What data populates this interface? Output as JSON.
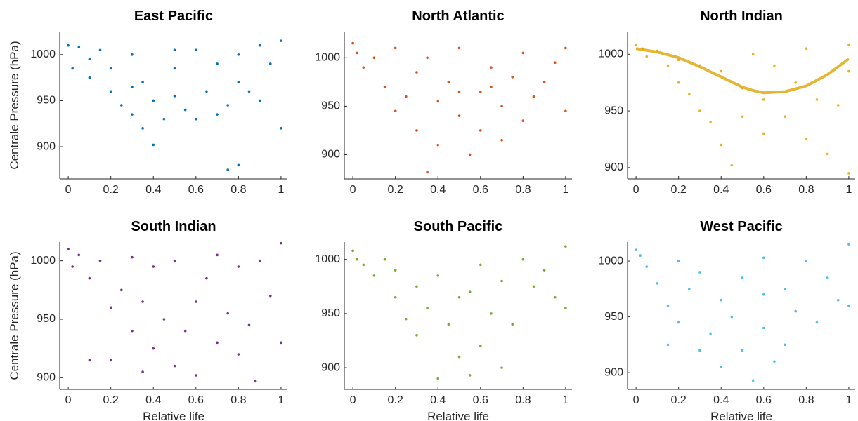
{
  "chart_data": [
    {
      "type": "scatter",
      "title": "East Pacific",
      "ylabel": "Centrale Pressure (hPa)",
      "color": "#0072BD",
      "xlim": [
        -0.04,
        1.03
      ],
      "xticks": [
        0,
        0.2,
        0.4,
        0.6,
        0.8,
        1
      ],
      "ylim": [
        865,
        1025
      ],
      "yticks": [
        900,
        950,
        1000
      ],
      "x": [
        0,
        0.02,
        0.05,
        0.1,
        0.1,
        0.15,
        0.2,
        0.2,
        0.25,
        0.3,
        0.3,
        0.35,
        0.35,
        0.4,
        0.4,
        0.45,
        0.5,
        0.5,
        0.55,
        0.6,
        0.6,
        0.65,
        0.7,
        0.7,
        0.75,
        0.8,
        0.8,
        0.85,
        0.9,
        0.9,
        0.95,
        1,
        1,
        0.3,
        0.75,
        0.8,
        0.5
      ],
      "values": [
        1010,
        985,
        1008,
        995,
        975,
        1005,
        985,
        960,
        945,
        1000,
        935,
        970,
        920,
        950,
        902,
        930,
        985,
        955,
        940,
        1005,
        930,
        960,
        990,
        935,
        875,
        1000,
        880,
        960,
        1010,
        950,
        990,
        1015,
        920,
        965,
        945,
        970,
        1005
      ]
    },
    {
      "type": "scatter",
      "title": "North Atlantic",
      "color": "#D95319",
      "xlim": [
        -0.04,
        1.03
      ],
      "xticks": [
        0,
        0.2,
        0.4,
        0.6,
        0.8,
        1
      ],
      "ylim": [
        875,
        1027
      ],
      "yticks": [
        900,
        950,
        1000
      ],
      "x": [
        0,
        0.02,
        0.05,
        0.1,
        0.15,
        0.2,
        0.2,
        0.25,
        0.3,
        0.3,
        0.35,
        0.35,
        0.4,
        0.4,
        0.45,
        0.5,
        0.5,
        0.55,
        0.6,
        0.6,
        0.65,
        0.7,
        0.7,
        0.75,
        0.8,
        0.8,
        0.85,
        0.9,
        0.95,
        1,
        1,
        0.5,
        0.65
      ],
      "values": [
        1015,
        1005,
        990,
        1000,
        970,
        1010,
        945,
        960,
        985,
        925,
        1000,
        882,
        955,
        910,
        975,
        1010,
        940,
        900,
        965,
        925,
        990,
        950,
        915,
        980,
        1005,
        935,
        960,
        975,
        995,
        1010,
        945,
        965,
        970
      ]
    },
    {
      "type": "scatter",
      "title": "North Indian",
      "color": "#EDB120",
      "xlim": [
        -0.04,
        1.03
      ],
      "xticks": [
        0,
        0.2,
        0.4,
        0.6,
        0.8,
        1
      ],
      "ylim": [
        890,
        1020
      ],
      "yticks": [
        900,
        950,
        1000
      ],
      "x": [
        0,
        0.03,
        0.05,
        0.1,
        0.15,
        0.2,
        0.2,
        0.25,
        0.3,
        0.3,
        0.35,
        0.4,
        0.4,
        0.45,
        0.5,
        0.5,
        0.55,
        0.6,
        0.6,
        0.65,
        0.7,
        0.75,
        0.8,
        0.8,
        0.85,
        0.9,
        0.95,
        1,
        1,
        1
      ],
      "values": [
        1008,
        1005,
        998,
        1003,
        990,
        995,
        975,
        965,
        990,
        950,
        940,
        985,
        920,
        902,
        970,
        945,
        1000,
        960,
        930,
        990,
        945,
        975,
        1005,
        925,
        960,
        912,
        955,
        1008,
        985,
        895
      ],
      "trend": {
        "color": "#E0A810",
        "x": [
          0,
          0.1,
          0.2,
          0.3,
          0.4,
          0.5,
          0.55,
          0.6,
          0.7,
          0.8,
          0.9,
          1
        ],
        "values": [
          1005,
          1002,
          997,
          989,
          980,
          971,
          968,
          966,
          967,
          972,
          982,
          996
        ]
      }
    },
    {
      "type": "scatter",
      "title": "South Indian",
      "xlabel": "Relative life",
      "ylabel": "Centrale Pressure (hPa)",
      "color": "#7E2F8E",
      "xlim": [
        -0.04,
        1.03
      ],
      "xticks": [
        0,
        0.2,
        0.4,
        0.6,
        0.8,
        1
      ],
      "ylim": [
        890,
        1016
      ],
      "yticks": [
        900,
        950,
        1000
      ],
      "x": [
        0,
        0.02,
        0.05,
        0.1,
        0.1,
        0.15,
        0.2,
        0.2,
        0.25,
        0.3,
        0.3,
        0.35,
        0.35,
        0.4,
        0.4,
        0.45,
        0.5,
        0.5,
        0.55,
        0.6,
        0.6,
        0.65,
        0.7,
        0.7,
        0.75,
        0.8,
        0.8,
        0.85,
        0.9,
        0.95,
        1,
        1,
        0.88
      ],
      "values": [
        1010,
        995,
        1005,
        985,
        915,
        1000,
        960,
        915,
        975,
        940,
        1003,
        905,
        965,
        925,
        995,
        950,
        1000,
        910,
        940,
        965,
        902,
        985,
        930,
        1005,
        955,
        920,
        995,
        945,
        1000,
        970,
        1015,
        930,
        897
      ]
    },
    {
      "type": "scatter",
      "title": "South Pacific",
      "xlabel": "Relative life",
      "color": "#77AC30",
      "xlim": [
        -0.04,
        1.03
      ],
      "xticks": [
        0,
        0.2,
        0.4,
        0.6,
        0.8,
        1
      ],
      "ylim": [
        880,
        1016
      ],
      "yticks": [
        900,
        950,
        1000
      ],
      "x": [
        0,
        0.02,
        0.05,
        0.1,
        0.15,
        0.2,
        0.2,
        0.25,
        0.3,
        0.3,
        0.35,
        0.4,
        0.4,
        0.45,
        0.5,
        0.5,
        0.55,
        0.6,
        0.6,
        0.65,
        0.7,
        0.7,
        0.75,
        0.8,
        0.85,
        0.9,
        0.95,
        1,
        1,
        0.55
      ],
      "values": [
        1008,
        1000,
        995,
        985,
        1000,
        965,
        990,
        945,
        975,
        930,
        955,
        890,
        985,
        940,
        965,
        910,
        893,
        995,
        920,
        950,
        900,
        980,
        940,
        1000,
        975,
        990,
        965,
        1012,
        955,
        970
      ]
    },
    {
      "type": "scatter",
      "title": "West Pacific",
      "xlabel": "Relative life",
      "color": "#4DBEEE",
      "xlim": [
        -0.04,
        1.03
      ],
      "xticks": [
        0,
        0.2,
        0.4,
        0.6,
        0.8,
        1
      ],
      "ylim": [
        885,
        1017
      ],
      "yticks": [
        900,
        950,
        1000
      ],
      "x": [
        0,
        0.02,
        0.05,
        0.1,
        0.15,
        0.2,
        0.2,
        0.25,
        0.3,
        0.3,
        0.35,
        0.4,
        0.4,
        0.45,
        0.5,
        0.5,
        0.55,
        0.6,
        0.6,
        0.65,
        0.7,
        0.7,
        0.75,
        0.8,
        0.85,
        0.9,
        0.95,
        1,
        1,
        0.15,
        0.6
      ],
      "values": [
        1010,
        1005,
        995,
        980,
        960,
        1000,
        945,
        975,
        920,
        990,
        935,
        965,
        905,
        950,
        985,
        920,
        893,
        1003,
        940,
        910,
        975,
        925,
        955,
        1000,
        945,
        985,
        965,
        1015,
        960,
        925,
        970
      ]
    }
  ]
}
